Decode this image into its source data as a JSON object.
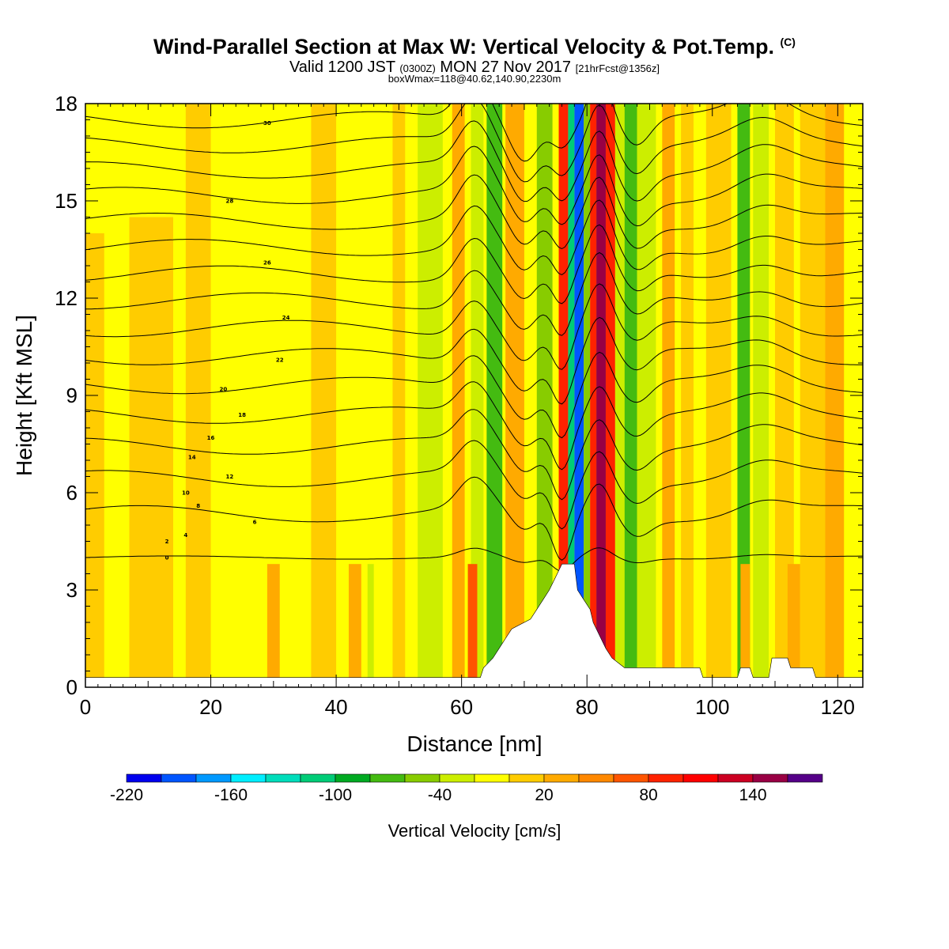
{
  "header": {
    "title_main": "Wind-Parallel Section at Max W: Vertical Velocity & Pot.Temp.",
    "title_mark": "(C)",
    "valid_prefix": "Valid 1200 JST",
    "valid_utc": "(0300Z)",
    "valid_date": "MON 27 Nov 2017",
    "valid_fcst": "[21hrFcst@1356z]",
    "box_info": "boxWmax=118@40.62,140.90,2230m"
  },
  "colors": {
    "background": "#ffff00",
    "terrain": "#ffffff",
    "contour": "#000000"
  },
  "chart_data": {
    "type": "heatmap",
    "xlabel": "Distance [nm]",
    "ylabel": "Height [Kft MSL]",
    "xlim": [
      0,
      124
    ],
    "ylim": [
      0,
      18
    ],
    "x_ticks": [
      0,
      20,
      40,
      60,
      80,
      100,
      120
    ],
    "y_ticks": [
      0,
      3,
      6,
      9,
      12,
      15,
      18
    ],
    "grid": false,
    "colorbar": {
      "title": "Vertical Velocity [cm/s]",
      "min": -220,
      "step": 20,
      "labels": [
        -220,
        -160,
        -100,
        -40,
        20,
        80,
        140
      ],
      "colors": [
        "#0000ee",
        "#0055ff",
        "#0099ff",
        "#00eeff",
        "#00ddbb",
        "#00cc77",
        "#00aa22",
        "#44bb11",
        "#88cc00",
        "#ccee00",
        "#ffff00",
        "#ffcc00",
        "#ffaa00",
        "#ff8800",
        "#ff5500",
        "#ff2200",
        "#ff0000",
        "#cc0022",
        "#990044",
        "#550088"
      ]
    },
    "vertical_velocity_bands": [
      {
        "x_start": 0,
        "x_end": 3,
        "y_top": 14,
        "value": 10
      },
      {
        "x_start": 7,
        "x_end": 14,
        "y_top": 14.5,
        "value": 10
      },
      {
        "x_start": 16,
        "x_end": 20,
        "y_top": 18,
        "value": 10
      },
      {
        "x_start": 36,
        "x_end": 40,
        "y_top": 18,
        "value": 10
      },
      {
        "x_start": 49,
        "x_end": 51,
        "y_top": 18,
        "value": 10
      },
      {
        "x_start": 53,
        "x_end": 57,
        "y_top": 18,
        "value": -30
      },
      {
        "x_start": 58.5,
        "x_end": 60.5,
        "y_top": 18,
        "value": 30
      },
      {
        "x_start": 61.5,
        "x_end": 63.5,
        "y_top": 18,
        "value": -30
      },
      {
        "x_start": 64,
        "x_end": 66.5,
        "y_top": 18,
        "value": -80
      },
      {
        "x_start": 67,
        "x_end": 70,
        "y_top": 18,
        "value": 30
      },
      {
        "x_start": 72,
        "x_end": 74.5,
        "y_top": 18,
        "value": -50
      },
      {
        "x_start": 75.5,
        "x_end": 77,
        "y_top": 18,
        "value": 80
      },
      {
        "x_start": 77,
        "x_end": 78,
        "y_top": 18,
        "value": -120
      },
      {
        "x_start": 78,
        "x_end": 79.5,
        "y_top": 18,
        "value": -200
      },
      {
        "x_start": 79.5,
        "x_end": 80.5,
        "y_top": 18,
        "value": -60
      },
      {
        "x_start": 80.5,
        "x_end": 81.5,
        "y_top": 18,
        "value": 90
      },
      {
        "x_start": 81.5,
        "x_end": 83,
        "y_top": 18,
        "value": 140
      },
      {
        "x_start": 83,
        "x_end": 84.5,
        "y_top": 18,
        "value": 80
      },
      {
        "x_start": 84.5,
        "x_end": 86,
        "y_top": 18,
        "value": -30
      },
      {
        "x_start": 86,
        "x_end": 88,
        "y_top": 18,
        "value": -80
      },
      {
        "x_start": 88,
        "x_end": 91,
        "y_top": 18,
        "value": -30
      },
      {
        "x_start": 92,
        "x_end": 94,
        "y_top": 18,
        "value": 30
      },
      {
        "x_start": 95,
        "x_end": 97,
        "y_top": 18,
        "value": 10
      },
      {
        "x_start": 99,
        "x_end": 103,
        "y_top": 18,
        "value": 10
      },
      {
        "x_start": 104,
        "x_end": 106,
        "y_top": 18,
        "value": -80
      },
      {
        "x_start": 106.5,
        "x_end": 109,
        "y_top": 18,
        "value": -30
      },
      {
        "x_start": 110,
        "x_end": 113,
        "y_top": 18,
        "value": 10
      },
      {
        "x_start": 114,
        "x_end": 118,
        "y_top": 18,
        "value": 10
      },
      {
        "x_start": 118,
        "x_end": 121,
        "y_top": 18,
        "value": 30
      },
      {
        "x_start": 61,
        "x_end": 62.5,
        "y_top": 3.8,
        "value": 70
      },
      {
        "x_start": 29,
        "x_end": 31,
        "y_top": 3.8,
        "value": 30
      },
      {
        "x_start": 42,
        "x_end": 44,
        "y_top": 3.8,
        "value": 20
      },
      {
        "x_start": 45,
        "x_end": 46,
        "y_top": 3.8,
        "value": -30
      },
      {
        "x_start": 104.5,
        "x_end": 106,
        "y_top": 3.8,
        "value": 30
      },
      {
        "x_start": 112,
        "x_end": 114,
        "y_top": 3.8,
        "value": 30
      }
    ],
    "terrain_profile": [
      [
        0,
        0.3
      ],
      [
        63,
        0.3
      ],
      [
        63.5,
        0.6
      ],
      [
        65,
        0.9
      ],
      [
        66,
        1.2
      ],
      [
        67,
        1.5
      ],
      [
        68,
        1.8
      ],
      [
        71,
        2.1
      ],
      [
        72,
        2.4
      ],
      [
        73,
        2.7
      ],
      [
        74,
        3.0
      ],
      [
        75,
        3.4
      ],
      [
        76,
        3.8
      ],
      [
        78,
        3.8
      ],
      [
        78.5,
        3.0
      ],
      [
        79.5,
        2.7
      ],
      [
        80.5,
        2.4
      ],
      [
        81,
        2.0
      ],
      [
        82,
        1.6
      ],
      [
        83,
        1.2
      ],
      [
        84,
        0.9
      ],
      [
        86,
        0.6
      ],
      [
        98,
        0.6
      ],
      [
        98.5,
        0.3
      ],
      [
        104,
        0.3
      ],
      [
        104.5,
        0.6
      ],
      [
        106,
        0.6
      ],
      [
        106.5,
        0.3
      ],
      [
        109,
        0.3
      ],
      [
        109.5,
        0.9
      ],
      [
        112,
        0.9
      ],
      [
        112.5,
        0.6
      ],
      [
        116,
        0.6
      ],
      [
        116.5,
        0.3
      ],
      [
        124,
        0.3
      ]
    ],
    "theta_levels_c": [
      0,
      2,
      4,
      6,
      8,
      10,
      12,
      14,
      16,
      18,
      20,
      22,
      24,
      26,
      28,
      30
    ],
    "theta_label_positions": [
      {
        "label": "0",
        "x": 13,
        "y": 4.0
      },
      {
        "label": "2",
        "x": 13,
        "y": 4.5
      },
      {
        "label": "4",
        "x": 16,
        "y": 4.7
      },
      {
        "label": "6",
        "x": 27,
        "y": 5.1
      },
      {
        "label": "8",
        "x": 18,
        "y": 5.6
      },
      {
        "label": "10",
        "x": 16,
        "y": 6.0
      },
      {
        "label": "12",
        "x": 23,
        "y": 6.5
      },
      {
        "label": "14",
        "x": 17,
        "y": 7.1
      },
      {
        "label": "16",
        "x": 20,
        "y": 7.7
      },
      {
        "label": "18",
        "x": 25,
        "y": 8.4
      },
      {
        "label": "20",
        "x": 22,
        "y": 9.2
      },
      {
        "label": "22",
        "x": 31,
        "y": 10.1
      },
      {
        "label": "24",
        "x": 32,
        "y": 11.4
      },
      {
        "label": "26",
        "x": 29,
        "y": 13.1
      },
      {
        "label": "28",
        "x": 23,
        "y": 15.0
      },
      {
        "label": "30",
        "x": 29,
        "y": 17.4
      }
    ]
  }
}
